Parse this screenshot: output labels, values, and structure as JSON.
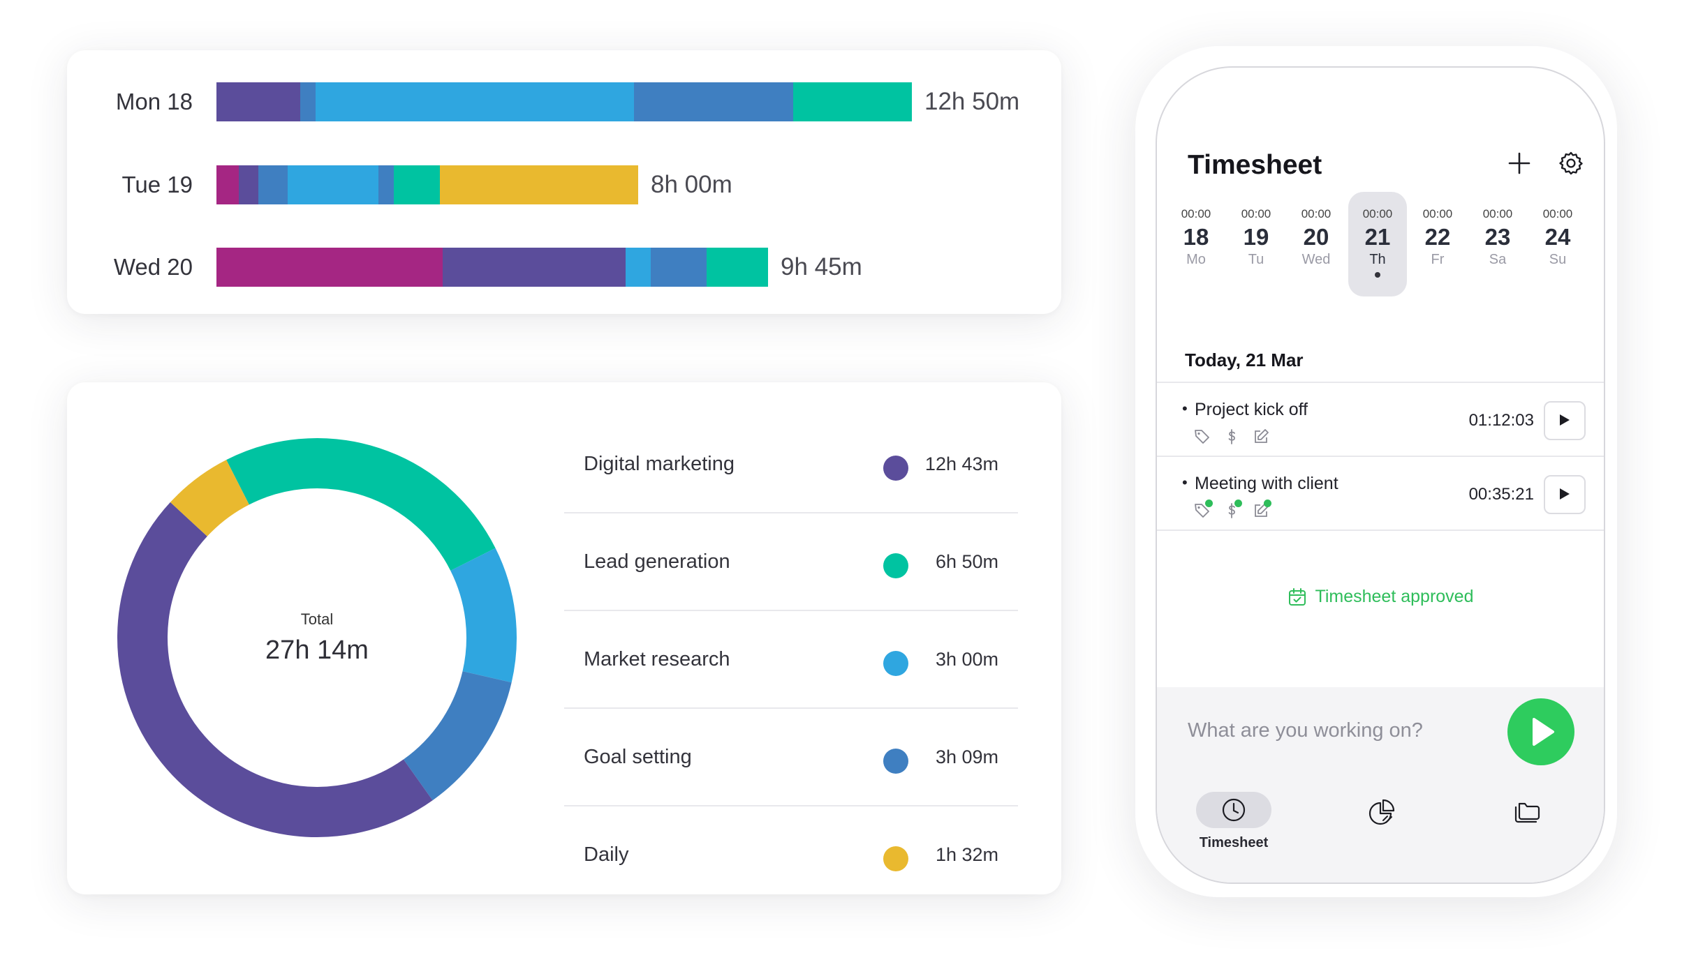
{
  "daily": {
    "rows": [
      {
        "day": "Mon 18",
        "total": "12h 50m",
        "segments": [
          [
            "#5b4d9b",
            120
          ],
          [
            "#3f7fc1",
            22
          ],
          [
            "#2fa6e0",
            456
          ],
          [
            "#3f7fc1",
            228
          ],
          [
            "#00c3a1",
            170
          ]
        ]
      },
      {
        "day": "Tue 19",
        "total": "8h 00m",
        "segments": [
          [
            "#a52683",
            32
          ],
          [
            "#5b4d9b",
            28
          ],
          [
            "#3f7fc1",
            42
          ],
          [
            "#2fa6e0",
            130
          ],
          [
            "#3f7fc1",
            22
          ],
          [
            "#00c3a1",
            66
          ],
          [
            "#e9b92f",
            284
          ]
        ]
      },
      {
        "day": "Wed 20",
        "total": "9h 45m",
        "segments": [
          [
            "#a52683",
            324
          ],
          [
            "#5b4d9b",
            262
          ],
          [
            "#2fa6e0",
            36
          ],
          [
            "#3f7fc1",
            80
          ],
          [
            "#00c3a1",
            88
          ]
        ]
      }
    ]
  },
  "projects": {
    "total_label": "Total",
    "total_value": "27h 14m",
    "items": [
      {
        "name": "Digital marketing",
        "value": "12h 43m",
        "minutes": 763,
        "color": "#5b4d9b"
      },
      {
        "name": "Lead generation",
        "value": "6h 50m",
        "minutes": 410,
        "color": "#00c3a1"
      },
      {
        "name": "Market research",
        "value": "3h 00m",
        "minutes": 180,
        "color": "#2fa6e0"
      },
      {
        "name": "Goal setting",
        "value": "3h 09m",
        "minutes": 189,
        "color": "#3f7fc1"
      },
      {
        "name": "Daily",
        "value": "1h 32m",
        "minutes": 92,
        "color": "#e9b92f"
      }
    ]
  },
  "phone": {
    "title": "Timesheet",
    "week": [
      {
        "time": "00:00",
        "num": "18",
        "name": "Mo"
      },
      {
        "time": "00:00",
        "num": "19",
        "name": "Tu"
      },
      {
        "time": "00:00",
        "num": "20",
        "name": "Wed"
      },
      {
        "time": "00:00",
        "num": "21",
        "name": "Th",
        "selected": true
      },
      {
        "time": "00:00",
        "num": "22",
        "name": "Fr"
      },
      {
        "time": "00:00",
        "num": "23",
        "name": "Sa"
      },
      {
        "time": "00:00",
        "num": "24",
        "name": "Su"
      }
    ],
    "today_label": "Today, 21 Mar",
    "entries": [
      {
        "name": "Project kick off",
        "time": "01:12:03"
      },
      {
        "name": "Meeting with client",
        "time": "00:35:21"
      }
    ],
    "approved_text": "Timesheet approved",
    "work_placeholder": "What are you working on?",
    "nav": {
      "timesheet_label": "Timesheet"
    },
    "accent_color": "#2ecc5e"
  }
}
